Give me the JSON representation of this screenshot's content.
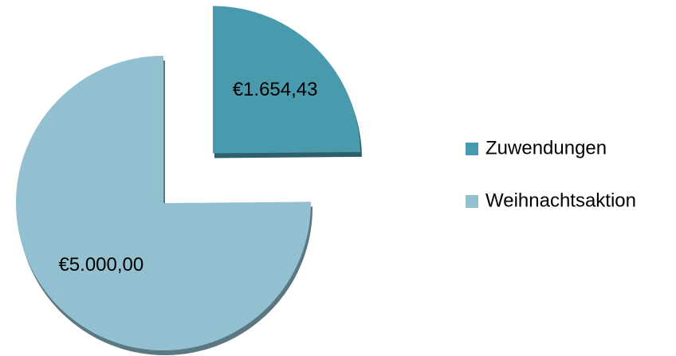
{
  "chart_data": {
    "type": "pie",
    "categories": [
      "Zuwendungen",
      "Weihnachtsaktion"
    ],
    "values": [
      1654.43,
      5000
    ],
    "value_labels": [
      "€1.654,43",
      "€5.000,00"
    ],
    "colors": [
      "#4a9aae",
      "#93c0d0"
    ],
    "legend": "right"
  }
}
